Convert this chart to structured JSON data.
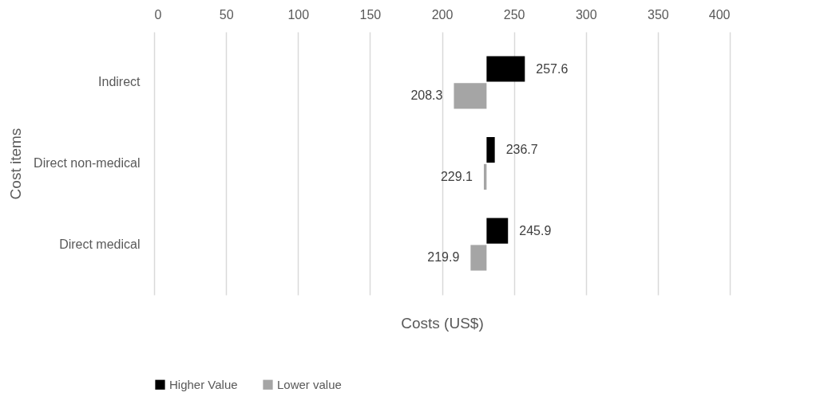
{
  "chart_data": {
    "type": "bar",
    "orientation": "horizontal",
    "xlabel": "Costs (US$)",
    "ylabel": "Cost items",
    "categories": [
      "Indirect",
      "Direct non-medical",
      "Direct medical"
    ],
    "series": [
      {
        "name": "Higher Value",
        "color": "#000000",
        "base": [
          231,
          231,
          231
        ],
        "values": [
          26.6,
          5.7,
          14.9
        ],
        "value_labels": [
          "257.6",
          "236.7",
          "245.9"
        ]
      },
      {
        "name": "Lower value",
        "color": "#a5a5a5",
        "base": [
          231,
          231,
          231
        ],
        "values": [
          -22.7,
          -1.9,
          -11.1
        ],
        "value_labels": [
          "208.3",
          "229.1",
          "219.9"
        ]
      }
    ],
    "xlim": [
      0,
      400
    ],
    "xticks": [
      0,
      50,
      100,
      150,
      200,
      250,
      300,
      350,
      400
    ],
    "grid": "x",
    "legend": "bottom"
  }
}
